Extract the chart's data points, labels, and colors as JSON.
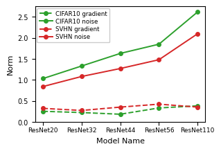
{
  "x_labels": [
    "ResNet20",
    "ResNet32",
    "ResNet44",
    "ResNet56",
    "ResNet110"
  ],
  "cifar10_gradient": [
    0.25,
    0.22,
    0.18,
    0.33,
    0.38
  ],
  "cifar10_noise": [
    1.03,
    1.33,
    1.63,
    1.85,
    2.62
  ],
  "svhn_gradient": [
    0.32,
    0.27,
    0.35,
    0.42,
    0.35
  ],
  "svhn_noise": [
    0.84,
    1.08,
    1.27,
    1.48,
    2.1
  ],
  "line_color_green": "#2ca02c",
  "line_color_red": "#d62728",
  "ylabel": "Norm",
  "xlabel": "Model Name",
  "ylim": [
    0.0,
    2.75
  ],
  "yticks": [
    0.0,
    0.5,
    1.0,
    1.5,
    2.0,
    2.5
  ],
  "legend_labels": [
    "CIFAR10 gradient",
    "CIFAR10 noise",
    "SVHN gradient",
    "SVHN noise"
  ],
  "marker": "o",
  "markersize": 4,
  "linewidth": 1.4
}
